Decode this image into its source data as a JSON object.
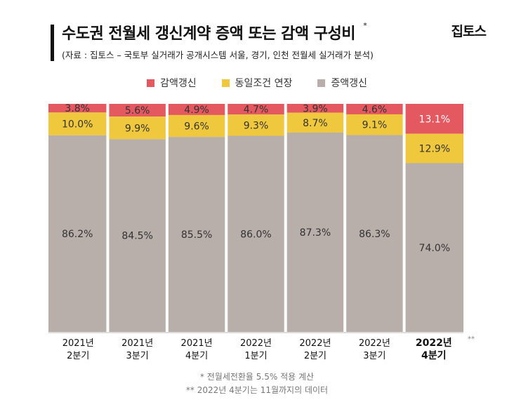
{
  "header": {
    "title": "수도권 전월세 갱신계약 증액 또는 감액 구성비",
    "title_mark": "*",
    "subtitle": "(자료 : 집토스 – 국토부 실거래가 공개시스템 서울, 경기, 인천 전월세 실거래가 분석)",
    "brand": "집토스"
  },
  "chart_data": {
    "type": "bar",
    "stacked": true,
    "categories": [
      [
        "2021년",
        "2분기"
      ],
      [
        "2021년",
        "3분기"
      ],
      [
        "2021년",
        "4분기"
      ],
      [
        "2022년",
        "1분기"
      ],
      [
        "2022년",
        "2분기"
      ],
      [
        "2022년",
        "3분기"
      ],
      [
        "2022년",
        "4분기"
      ]
    ],
    "category_marks": [
      "",
      "",
      "",
      "",
      "",
      "",
      "**"
    ],
    "highlight_category_index": 6,
    "series": [
      {
        "name": "감액갱신",
        "color": "#e4585f",
        "values": [
          3.8,
          5.6,
          4.9,
          4.7,
          3.9,
          4.6,
          13.1
        ]
      },
      {
        "name": "동일조건 연장",
        "color": "#efc83d",
        "values": [
          10.0,
          9.9,
          9.6,
          9.3,
          8.7,
          9.1,
          12.9
        ]
      },
      {
        "name": "증액갱신",
        "color": "#b8aeaa",
        "values": [
          86.2,
          84.5,
          85.5,
          86.0,
          87.3,
          86.3,
          74.0
        ]
      }
    ],
    "value_labels": [
      [
        "3.8%",
        "5.6%",
        "4.9%",
        "4.7%",
        "3.9%",
        "4.6%",
        "13.1%"
      ],
      [
        "10.0%",
        "9.9%",
        "9.6%",
        "9.3%",
        "8.7%",
        "9.1%",
        "12.9%"
      ],
      [
        "86.2%",
        "84.5%",
        "85.5%",
        "86.0%",
        "87.3%",
        "86.3%",
        "74.0%"
      ]
    ],
    "ylim": [
      0,
      100
    ],
    "legend_position": "top-center",
    "grid": false
  },
  "footnotes": [
    "* 전월세전환율 5.5% 적용 계산",
    "** 2022년 4분기는 11월까지의 데이터"
  ]
}
